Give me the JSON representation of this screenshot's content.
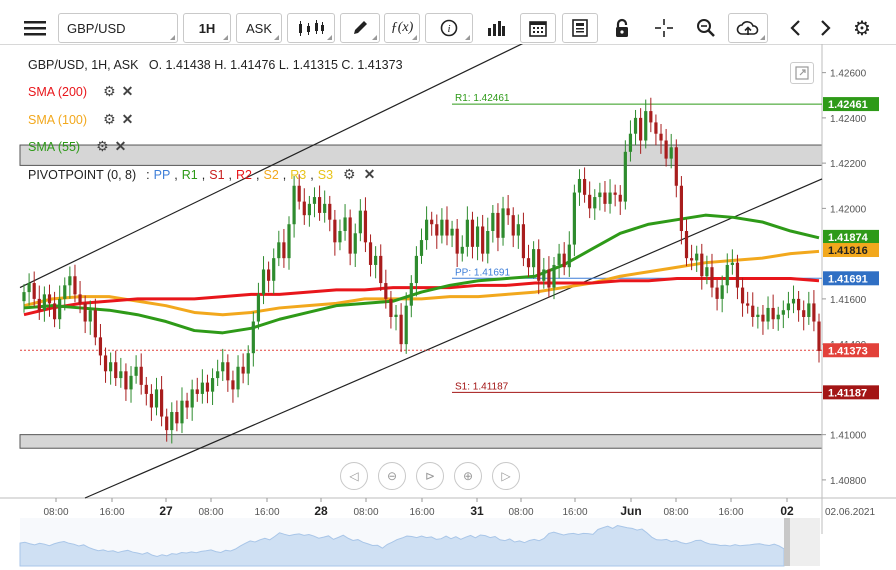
{
  "toolbar": {
    "symbol": "GBP/USD",
    "timeframe": "1H",
    "price_type": "ASK",
    "icons": [
      "menu-icon",
      "candles-icon",
      "pencil-icon",
      "fx-icon",
      "info-icon",
      "volume-bars-icon",
      "calendar-icon",
      "news-icon",
      "lock-icon",
      "crosshair-icon",
      "zoom-icon",
      "cloud-upload-icon",
      "chevron-left-icon",
      "chevron-right-icon",
      "gear-icon"
    ]
  },
  "header": {
    "ohlc": "GBP/USD, 1H, ASK   O. 1.41438 H. 1.41476 L. 1.41315 C. 1.41373"
  },
  "indicators": [
    {
      "label": "SMA (200)",
      "color": "#e8161b"
    },
    {
      "label": "SMA (100)",
      "color": "#f2a81d"
    },
    {
      "label": "SMA (55)",
      "color": "#2e9a18"
    }
  ],
  "pivot": {
    "label": "PIVOTPOINT (0, 8)",
    "sep": ":",
    "parts": [
      {
        "text": "PP",
        "color": "#3f7fd8"
      },
      {
        "text": "R1",
        "color": "#2e9a18"
      },
      {
        "text": "S1",
        "color": "#c81e1e"
      },
      {
        "text": "R2",
        "color": "#e8161b"
      },
      {
        "text": "S2",
        "color": "#f2a81d"
      },
      {
        "text": "R3",
        "color": "#e8c41a"
      },
      {
        "text": "S3",
        "color": "#e8c41a"
      }
    ]
  },
  "chart_data": {
    "type": "candlestick",
    "symbol": "GBP/USD",
    "timeframe": "1H",
    "ylim": [
      1.4072,
      1.427
    ],
    "y_ticks": [
      "1.42600",
      "1.42400",
      "1.42200",
      "1.42000",
      "1.41600",
      "1.41400",
      "1.41000",
      "1.40800"
    ],
    "x_ticks": [
      "08:00",
      "16:00",
      "27",
      "08:00",
      "16:00",
      "28",
      "08:00",
      "16:00",
      "31",
      "08:00",
      "16:00",
      "Jun",
      "08:00",
      "16:00",
      "02"
    ],
    "x_date": "02.06.2021",
    "levels": [
      {
        "name": "R1",
        "label": "R1: 1.42461",
        "value": 1.42461,
        "color": "#2e9a18"
      },
      {
        "name": "PP",
        "label": "PP: 1.41691",
        "value": 1.41691,
        "color": "#3f7fd8"
      },
      {
        "name": "S1",
        "label": "S1: 1.41187",
        "value": 1.41187,
        "color": "#a31515"
      }
    ],
    "price_tags": [
      {
        "value": 1.42461,
        "text": "1.42461",
        "bg": "#2e9a18",
        "fg": "#ffffff"
      },
      {
        "value": 1.41874,
        "text": "1.41874",
        "bg": "#2e9a18",
        "fg": "#ffffff"
      },
      {
        "value": 1.41816,
        "text": "1.41816",
        "bg": "#f2a81d",
        "fg": "#222222"
      },
      {
        "value": 1.41691,
        "text": "1.41691",
        "bg": "#2f6fc4",
        "fg": "#ffffff"
      },
      {
        "value": 1.41373,
        "text": "1.41373",
        "bg": "#e2413a",
        "fg": "#ffffff"
      },
      {
        "value": 1.41187,
        "text": "1.41187",
        "bg": "#a31515",
        "fg": "#ffffff"
      }
    ],
    "last_price": 1.41373,
    "closes": [
      1.4163,
      1.4167,
      1.416,
      1.4155,
      1.4162,
      1.4158,
      1.4151,
      1.416,
      1.4166,
      1.417,
      1.4162,
      1.4158,
      1.415,
      1.4155,
      1.4143,
      1.4135,
      1.4128,
      1.4132,
      1.4125,
      1.4128,
      1.412,
      1.4126,
      1.413,
      1.4122,
      1.4118,
      1.4112,
      1.412,
      1.4108,
      1.4102,
      1.411,
      1.4105,
      1.4115,
      1.4112,
      1.412,
      1.4118,
      1.4123,
      1.4119,
      1.4125,
      1.4128,
      1.4132,
      1.4124,
      1.412,
      1.413,
      1.4127,
      1.4136,
      1.415,
      1.4162,
      1.4173,
      1.4168,
      1.4178,
      1.4185,
      1.4178,
      1.4193,
      1.421,
      1.4203,
      1.4197,
      1.4202,
      1.4205,
      1.4198,
      1.4202,
      1.4195,
      1.4185,
      1.419,
      1.4196,
      1.418,
      1.4189,
      1.4199,
      1.4185,
      1.4175,
      1.4179,
      1.4167,
      1.416,
      1.4152,
      1.4153,
      1.414,
      1.4157,
      1.4167,
      1.4179,
      1.4186,
      1.4195,
      1.4193,
      1.4188,
      1.4195,
      1.4188,
      1.4191,
      1.418,
      1.4183,
      1.4195,
      1.4183,
      1.4192,
      1.418,
      1.419,
      1.4198,
      1.4187,
      1.42,
      1.4197,
      1.4188,
      1.4193,
      1.4178,
      1.4174,
      1.4182,
      1.4168,
      1.4173,
      1.4165,
      1.4175,
      1.418,
      1.4174,
      1.4184,
      1.4207,
      1.4213,
      1.4206,
      1.42,
      1.4205,
      1.4207,
      1.4202,
      1.4207,
      1.4206,
      1.4203,
      1.4225,
      1.4233,
      1.424,
      1.423,
      1.4243,
      1.4238,
      1.4233,
      1.423,
      1.4222,
      1.4227,
      1.421,
      1.419,
      1.4178,
      1.4177,
      1.418,
      1.417,
      1.4174,
      1.4165,
      1.416,
      1.4166,
      1.4175,
      1.4176,
      1.4165,
      1.4158,
      1.4157,
      1.4152,
      1.4153,
      1.415,
      1.4156,
      1.4151,
      1.4153,
      1.4155,
      1.4158,
      1.416,
      1.4155,
      1.4152,
      1.4158,
      1.415,
      1.4137
    ],
    "sma_200": [
      1.4153,
      1.4156,
      1.4158,
      1.4159,
      1.416,
      1.416,
      1.416,
      1.4161,
      1.4162,
      1.4162,
      1.4163,
      1.4164,
      1.4164,
      1.4165,
      1.4165,
      1.4165,
      1.4166,
      1.4166,
      1.4167,
      1.4167,
      1.4167,
      1.4168,
      1.4168,
      1.4169,
      1.4169,
      1.4169,
      1.4169,
      1.4169,
      1.4168
    ],
    "sma_100": [
      1.4157,
      1.416,
      1.4161,
      1.4161,
      1.4159,
      1.4157,
      1.4154,
      1.4153,
      1.4154,
      1.4156,
      1.4157,
      1.4158,
      1.416,
      1.416,
      1.416,
      1.4161,
      1.4161,
      1.4162,
      1.4163,
      1.4165,
      1.4167,
      1.417,
      1.4172,
      1.4174,
      1.4176,
      1.4177,
      1.4178,
      1.418,
      1.4181
    ],
    "sma_55": [
      1.4156,
      1.4157,
      1.4156,
      1.4155,
      1.4153,
      1.415,
      1.4146,
      1.4145,
      1.4147,
      1.4151,
      1.4154,
      1.4157,
      1.4158,
      1.4159,
      1.4163,
      1.4166,
      1.4168,
      1.4169,
      1.417,
      1.4175,
      1.4182,
      1.4189,
      1.4193,
      1.4195,
      1.4197,
      1.4196,
      1.4194,
      1.419,
      1.4187
    ]
  }
}
